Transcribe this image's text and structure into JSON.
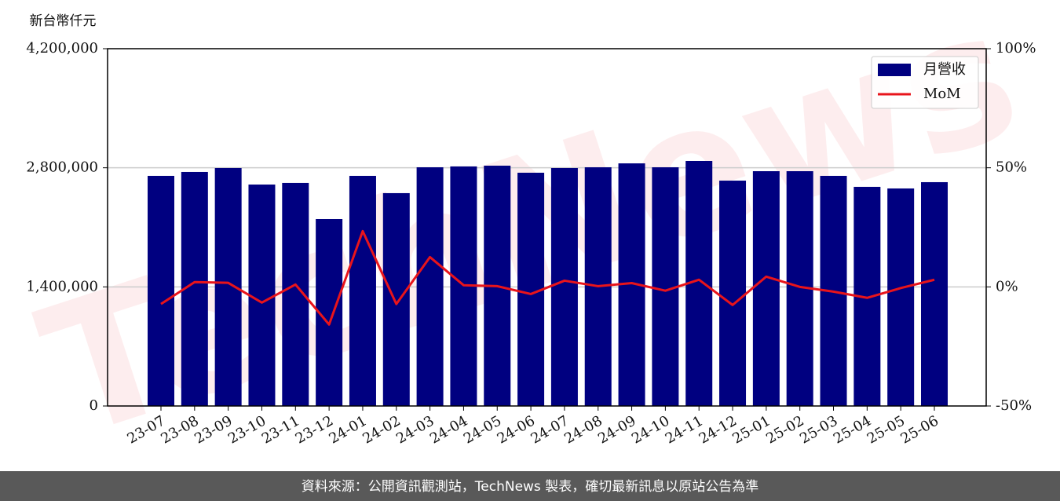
{
  "chart_data": {
    "type": "bar",
    "y_axis_label": "新台幣仟元",
    "footer": "資料來源：公開資訊觀測站，TechNews 製表，確切最新訊息以原站公告為準",
    "watermark": "TechNews",
    "categories": [
      "23-07",
      "23-08",
      "23-09",
      "23-10",
      "23-11",
      "23-12",
      "24-01",
      "24-02",
      "24-03",
      "24-04",
      "24-05",
      "24-06",
      "24-07",
      "24-08",
      "24-09",
      "24-10",
      "24-11",
      "24-12",
      "25-01",
      "25-02",
      "25-03",
      "25-04",
      "25-05",
      "25-06"
    ],
    "series": [
      {
        "name": "月營收",
        "type": "bar",
        "color": "#000080",
        "values": [
          2705000,
          2751000,
          2797000,
          2603000,
          2622000,
          2197000,
          2705000,
          2502000,
          2806000,
          2816000,
          2825000,
          2742000,
          2797000,
          2806000,
          2852000,
          2806000,
          2880000,
          2649000,
          2760000,
          2760000,
          2705000,
          2576000,
          2557000,
          2631000
        ]
      },
      {
        "name": "MoM",
        "type": "line",
        "color": "#e8141b",
        "axis": "y2",
        "values": [
          -7.2,
          2.0,
          1.7,
          -6.6,
          1.0,
          -15.8,
          23.4,
          -7.2,
          12.5,
          0.7,
          0.3,
          -3.0,
          2.6,
          0.3,
          1.6,
          -1.6,
          3.0,
          -7.6,
          4.3,
          0,
          -2.0,
          -4.6,
          -0.5,
          3.0
        ]
      }
    ],
    "ylim": [
      0,
      4200000
    ],
    "yticks": [
      0,
      {
        "value": 1400000,
        "label": "1,400,000"
      },
      {
        "value": 2800000,
        "label": "2,800,000"
      },
      {
        "value": 4200000,
        "label": "4,200,000"
      }
    ],
    "y2lim": [
      -50,
      100
    ],
    "y2ticks": [
      {
        "value": -50,
        "label": "-50%"
      },
      {
        "value": 0,
        "label": "0%"
      },
      {
        "value": 50,
        "label": "50%"
      },
      {
        "value": 100,
        "label": "100%"
      }
    ],
    "grid": true,
    "legend": "upper right"
  }
}
